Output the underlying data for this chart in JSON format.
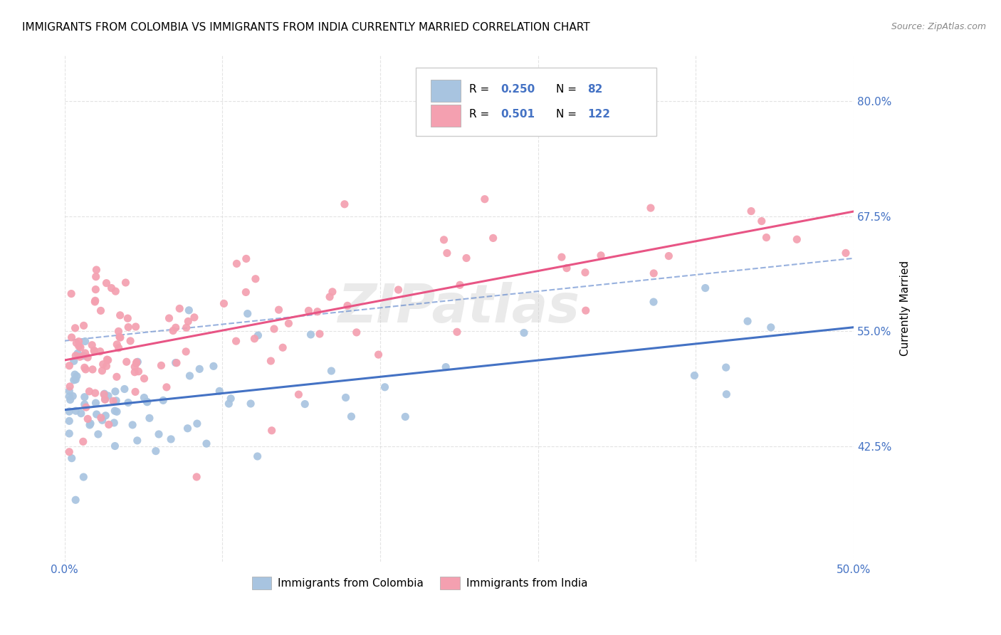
{
  "title": "IMMIGRANTS FROM COLOMBIA VS IMMIGRANTS FROM INDIA CURRENTLY MARRIED CORRELATION CHART",
  "source": "Source: ZipAtlas.com",
  "xlabel_colombia": "Immigrants from Colombia",
  "xlabel_india": "Immigrants from India",
  "ylabel": "Currently Married",
  "xlim": [
    0.0,
    0.5
  ],
  "ylim": [
    0.3,
    0.85
  ],
  "yticks": [
    0.425,
    0.55,
    0.675,
    0.8
  ],
  "ytick_labels": [
    "42.5%",
    "55.0%",
    "67.5%",
    "80.0%"
  ],
  "xticks": [
    0.0,
    0.1,
    0.2,
    0.3,
    0.4,
    0.5
  ],
  "xtick_labels": [
    "0.0%",
    "",
    "",
    "",
    "",
    "50.0%"
  ],
  "colombia_color": "#a8c4e0",
  "india_color": "#f4a0b0",
  "colombia_line_color": "#4472c4",
  "india_line_color": "#e85585",
  "colombia_R": 0.25,
  "colombia_N": 82,
  "india_R": 0.501,
  "india_N": 122,
  "watermark": "ZIPatlas",
  "background_color": "#ffffff",
  "grid_color": "#dddddd",
  "title_fontsize": 11,
  "axis_label_fontsize": 11,
  "tick_label_color": "#4472c4",
  "tick_label_fontsize": 11
}
